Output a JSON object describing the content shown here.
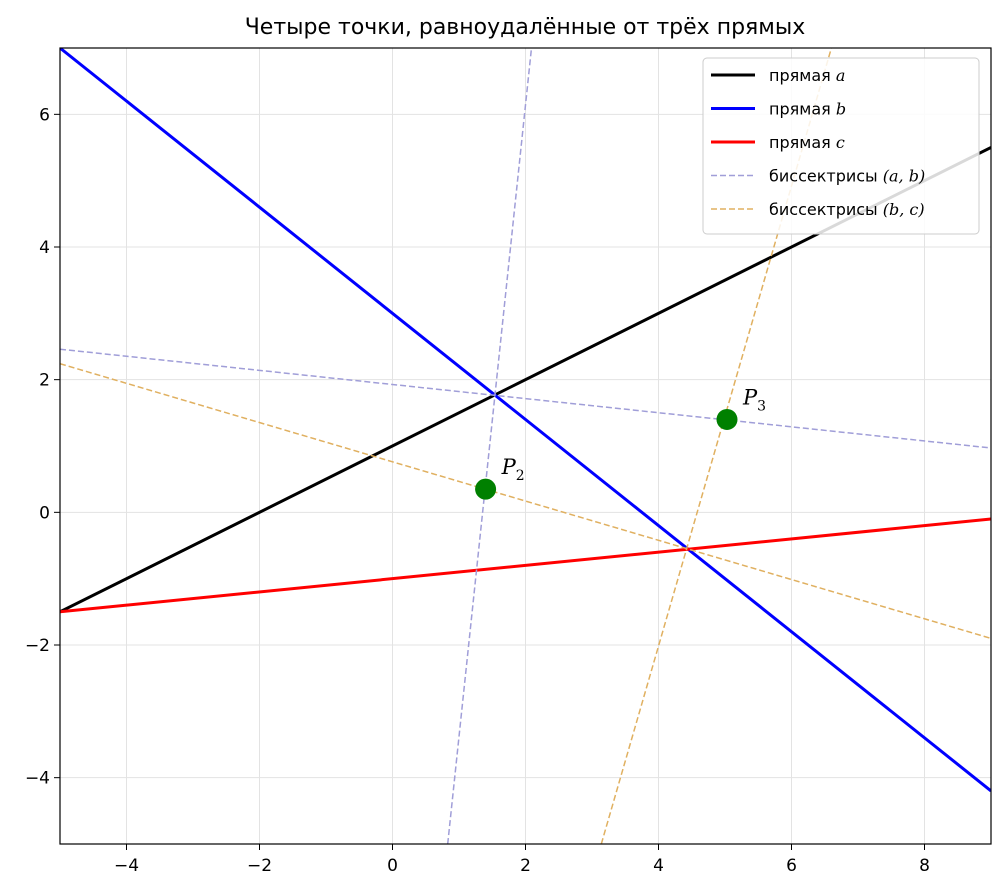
{
  "chart_data": {
    "type": "line",
    "title": "Четыре точки, равноудалённые от трёх прямых",
    "xlim": [
      -5,
      9
    ],
    "ylim": [
      -5,
      7
    ],
    "x_ticks": [
      -4,
      -2,
      0,
      2,
      4,
      6,
      8
    ],
    "y_ticks": [
      -4,
      -2,
      0,
      2,
      4,
      6
    ],
    "x_tick_labels": [
      "−4",
      "−2",
      "0",
      "2",
      "4",
      "6",
      "8"
    ],
    "y_tick_labels": [
      "−4",
      "−2",
      "0",
      "2",
      "4",
      "6"
    ],
    "grid": true,
    "legend_position": "top-right",
    "series": [
      {
        "name": "прямая a",
        "name_prefix": "прямая ",
        "name_math": "a",
        "style": "solid",
        "color": "#000000",
        "points": [
          [
            -5,
            -1.5
          ],
          [
            9,
            5.5
          ]
        ]
      },
      {
        "name": "прямая b",
        "name_prefix": "прямая ",
        "name_math": "b",
        "style": "solid",
        "color": "#0000ff",
        "points": [
          [
            -5,
            7
          ],
          [
            9,
            -4.2
          ]
        ]
      },
      {
        "name": "прямая c",
        "name_prefix": "прямая ",
        "name_math": "c",
        "style": "solid",
        "color": "#ff0000",
        "points": [
          [
            -5,
            -1.5
          ],
          [
            9,
            -0.1
          ]
        ]
      },
      {
        "name": "биссектрисы (a, b)",
        "name_prefix": "биссектрисы ",
        "name_math": "(a, b)",
        "style": "dashed",
        "color": "#a09ed8",
        "lines": [
          [
            [
              -5,
              2.46
            ],
            [
              9,
              0.97
            ]
          ],
          [
            [
              0.83,
              -5
            ],
            [
              2.09,
              7
            ]
          ]
        ]
      },
      {
        "name": "биссектрисы (b, c)",
        "name_prefix": "биссектрисы ",
        "name_math": "(b, c)",
        "style": "dashed",
        "color": "#e0b060",
        "lines": [
          [
            [
              -5,
              2.24
            ],
            [
              9,
              -1.9
            ]
          ],
          [
            [
              3.14,
              -5
            ],
            [
              6.6,
              7
            ]
          ]
        ]
      }
    ],
    "points": [
      {
        "label": "P",
        "subscript": "2",
        "x": 1.4,
        "y": 0.35,
        "color": "#008000"
      },
      {
        "label": "P",
        "subscript": "3",
        "x": 5.03,
        "y": 1.4,
        "color": "#008000"
      }
    ]
  }
}
